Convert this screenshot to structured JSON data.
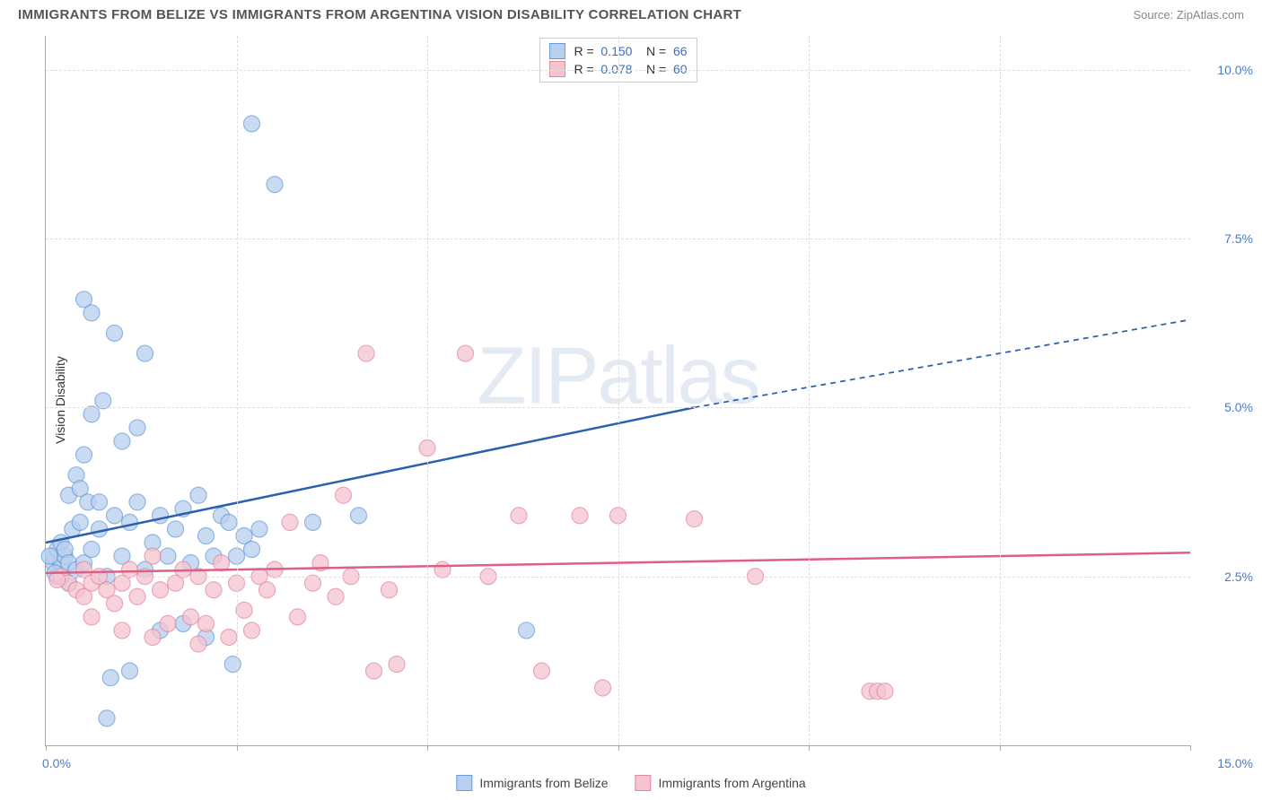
{
  "title": "IMMIGRANTS FROM BELIZE VS IMMIGRANTS FROM ARGENTINA VISION DISABILITY CORRELATION CHART",
  "source": "Source: ZipAtlas.com",
  "y_axis_label": "Vision Disability",
  "watermark": "ZIPatlas",
  "chart": {
    "type": "scatter",
    "xlim": [
      0,
      15
    ],
    "ylim": [
      0,
      10.5
    ],
    "y_ticks": [
      2.5,
      5.0,
      7.5,
      10.0
    ],
    "y_tick_labels": [
      "2.5%",
      "5.0%",
      "7.5%",
      "10.0%"
    ],
    "x_tick_marks": [
      0,
      2.5,
      5.0,
      7.5,
      10.0,
      12.5,
      15.0
    ],
    "x_min_label": "0.0%",
    "x_max_label": "15.0%",
    "grid_color": "#dddddd",
    "axis_color": "#aaaaaa",
    "background_color": "#ffffff"
  },
  "legend_top": {
    "rows": [
      {
        "r_label": "R  =",
        "r_val": "0.150",
        "n_label": "N  =",
        "n_val": "66"
      },
      {
        "r_label": "R  =",
        "r_val": "0.078",
        "n_label": "N  =",
        "n_val": "60"
      }
    ]
  },
  "series": [
    {
      "name": "Immigrants from Belize",
      "marker_fill": "#b8d0ef",
      "marker_stroke": "#6a9bd8",
      "marker_opacity": 0.75,
      "marker_radius": 9,
      "line_color": "#2b5fb0",
      "line_width": 2.5,
      "regression": {
        "x1": 0,
        "y1": 3.0,
        "x2": 8.5,
        "y2": 5.0,
        "dash_x2": 15,
        "dash_y2": 6.3
      },
      "points": [
        [
          0.1,
          2.7
        ],
        [
          0.1,
          2.8
        ],
        [
          0.15,
          2.5
        ],
        [
          0.15,
          2.9
        ],
        [
          0.2,
          2.6
        ],
        [
          0.2,
          2.7
        ],
        [
          0.2,
          3.0
        ],
        [
          0.25,
          2.8
        ],
        [
          0.25,
          2.9
        ],
        [
          0.3,
          2.4
        ],
        [
          0.3,
          2.7
        ],
        [
          0.3,
          3.7
        ],
        [
          0.35,
          3.2
        ],
        [
          0.4,
          2.6
        ],
        [
          0.4,
          4.0
        ],
        [
          0.45,
          3.3
        ],
        [
          0.45,
          3.8
        ],
        [
          0.5,
          2.7
        ],
        [
          0.5,
          4.3
        ],
        [
          0.5,
          6.6
        ],
        [
          0.55,
          3.6
        ],
        [
          0.6,
          2.9
        ],
        [
          0.6,
          4.9
        ],
        [
          0.6,
          6.4
        ],
        [
          0.7,
          3.2
        ],
        [
          0.7,
          3.6
        ],
        [
          0.75,
          5.1
        ],
        [
          0.8,
          2.5
        ],
        [
          0.8,
          0.4
        ],
        [
          0.85,
          1.0
        ],
        [
          0.9,
          3.4
        ],
        [
          0.9,
          6.1
        ],
        [
          1.0,
          2.8
        ],
        [
          1.0,
          4.5
        ],
        [
          1.1,
          3.3
        ],
        [
          1.1,
          1.1
        ],
        [
          1.2,
          3.6
        ],
        [
          1.2,
          4.7
        ],
        [
          1.3,
          2.6
        ],
        [
          1.3,
          5.8
        ],
        [
          1.4,
          3.0
        ],
        [
          1.5,
          3.4
        ],
        [
          1.5,
          1.7
        ],
        [
          1.6,
          2.8
        ],
        [
          1.7,
          3.2
        ],
        [
          1.8,
          3.5
        ],
        [
          1.8,
          1.8
        ],
        [
          1.9,
          2.7
        ],
        [
          2.0,
          3.7
        ],
        [
          2.1,
          3.1
        ],
        [
          2.1,
          1.6
        ],
        [
          2.2,
          2.8
        ],
        [
          2.3,
          3.4
        ],
        [
          2.4,
          3.3
        ],
        [
          2.45,
          1.2
        ],
        [
          2.7,
          9.2
        ],
        [
          3.0,
          8.3
        ],
        [
          2.5,
          2.8
        ],
        [
          2.6,
          3.1
        ],
        [
          2.7,
          2.9
        ],
        [
          2.8,
          3.2
        ],
        [
          3.5,
          3.3
        ],
        [
          4.1,
          3.4
        ],
        [
          6.3,
          1.7
        ],
        [
          0.12,
          2.55
        ],
        [
          0.05,
          2.8
        ]
      ]
    },
    {
      "name": "Immigrants from Argentina",
      "marker_fill": "#f5c4d0",
      "marker_stroke": "#e08aa0",
      "marker_opacity": 0.75,
      "marker_radius": 9,
      "line_color": "#dd5e86",
      "line_width": 2.5,
      "regression": {
        "x1": 0,
        "y1": 2.55,
        "x2": 15,
        "y2": 2.85
      },
      "points": [
        [
          0.2,
          2.5
        ],
        [
          0.3,
          2.4
        ],
        [
          0.4,
          2.3
        ],
        [
          0.5,
          2.2
        ],
        [
          0.5,
          2.6
        ],
        [
          0.6,
          2.4
        ],
        [
          0.6,
          1.9
        ],
        [
          0.7,
          2.5
        ],
        [
          0.8,
          2.3
        ],
        [
          0.9,
          2.1
        ],
        [
          1.0,
          2.4
        ],
        [
          1.0,
          1.7
        ],
        [
          1.1,
          2.6
        ],
        [
          1.2,
          2.2
        ],
        [
          1.3,
          2.5
        ],
        [
          1.4,
          1.6
        ],
        [
          1.4,
          2.8
        ],
        [
          1.5,
          2.3
        ],
        [
          1.6,
          1.8
        ],
        [
          1.7,
          2.4
        ],
        [
          1.8,
          2.6
        ],
        [
          1.9,
          1.9
        ],
        [
          2.0,
          2.5
        ],
        [
          2.0,
          1.5
        ],
        [
          2.1,
          1.8
        ],
        [
          2.2,
          2.3
        ],
        [
          2.3,
          2.7
        ],
        [
          2.4,
          1.6
        ],
        [
          2.5,
          2.4
        ],
        [
          2.6,
          2.0
        ],
        [
          2.7,
          1.7
        ],
        [
          2.8,
          2.5
        ],
        [
          2.9,
          2.3
        ],
        [
          3.0,
          2.6
        ],
        [
          3.2,
          3.3
        ],
        [
          3.3,
          1.9
        ],
        [
          3.5,
          2.4
        ],
        [
          3.6,
          2.7
        ],
        [
          3.8,
          2.2
        ],
        [
          3.9,
          3.7
        ],
        [
          4.0,
          2.5
        ],
        [
          4.2,
          5.8
        ],
        [
          4.3,
          1.1
        ],
        [
          4.5,
          2.3
        ],
        [
          4.6,
          1.2
        ],
        [
          5.0,
          4.4
        ],
        [
          5.2,
          2.6
        ],
        [
          5.5,
          5.8
        ],
        [
          5.8,
          2.5
        ],
        [
          6.2,
          3.4
        ],
        [
          6.5,
          1.1
        ],
        [
          7.0,
          3.4
        ],
        [
          7.3,
          0.85
        ],
        [
          7.5,
          3.4
        ],
        [
          8.5,
          3.35
        ],
        [
          9.3,
          2.5
        ],
        [
          10.8,
          0.8
        ],
        [
          10.9,
          0.8
        ],
        [
          11.0,
          0.8
        ],
        [
          0.15,
          2.45
        ]
      ]
    }
  ]
}
